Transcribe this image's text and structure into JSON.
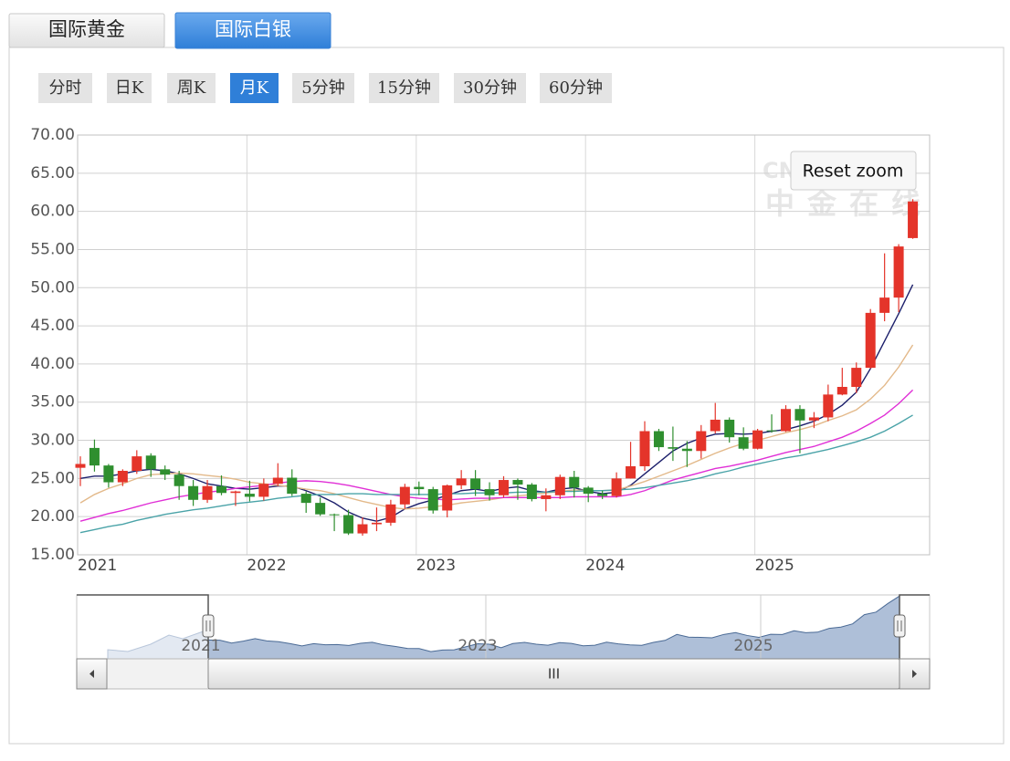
{
  "tabs": {
    "items": [
      "国际黄金",
      "国际白银"
    ],
    "active": 1
  },
  "periods": {
    "items": [
      "分时",
      "日K",
      "周K",
      "月K",
      "5分钟",
      "15分钟",
      "30分钟",
      "60分钟"
    ],
    "active": 3
  },
  "reset_zoom": "Reset zoom",
  "watermark": {
    "logo": "CN",
    "text": "中金在线"
  },
  "navigator": {
    "labels": [
      "2021",
      "2023",
      "2025"
    ],
    "grip": "III"
  },
  "chart_data": {
    "type": "candlestick",
    "categories": [
      "2021",
      null,
      null,
      null,
      null,
      null,
      null,
      null,
      null,
      null,
      null,
      null,
      "2022",
      null,
      null,
      null,
      null,
      null,
      null,
      null,
      null,
      null,
      null,
      null,
      "2023",
      null,
      null,
      null,
      null,
      null,
      null,
      null,
      null,
      null,
      null,
      null,
      "2024",
      null,
      null,
      null,
      null,
      null,
      null,
      null,
      null,
      null,
      null,
      null,
      "2025",
      null,
      null,
      null,
      null,
      null,
      null,
      null,
      null,
      null,
      null,
      null
    ],
    "open": [
      26.4,
      29.0,
      26.7,
      24.5,
      26.0,
      28.0,
      26.2,
      25.5,
      24.0,
      22.2,
      24.0,
      23.1,
      23.0,
      22.6,
      24.3,
      25.1,
      23.0,
      21.8,
      20.3,
      20.2,
      17.8,
      19.0,
      19.2,
      21.6,
      23.9,
      23.6,
      20.8,
      24.1,
      25.0,
      23.6,
      22.8,
      24.8,
      24.2,
      22.3,
      22.8,
      25.2,
      23.8,
      23.0,
      22.7,
      25.0,
      26.6,
      31.2,
      29.1,
      28.9,
      28.6,
      31.2,
      32.7,
      30.4,
      28.9,
      31.3,
      31.2,
      34.1,
      32.6,
      33.0,
      36.0,
      37.0,
      39.5,
      46.7,
      48.7,
      56.5
    ],
    "high": [
      27.9,
      30.1,
      26.9,
      26.2,
      28.7,
      28.3,
      26.7,
      26.0,
      24.8,
      24.8,
      25.4,
      23.4,
      24.7,
      25.0,
      27.0,
      26.2,
      23.3,
      22.5,
      20.4,
      20.9,
      19.9,
      21.2,
      22.2,
      24.3,
      24.6,
      23.9,
      24.2,
      26.1,
      26.1,
      24.5,
      25.3,
      25.0,
      24.4,
      23.7,
      25.5,
      26.0,
      24.0,
      23.4,
      25.8,
      29.8,
      32.5,
      31.5,
      31.8,
      29.9,
      32.0,
      34.9,
      33.0,
      31.7,
      31.5,
      33.4,
      34.6,
      34.6,
      33.7,
      37.3,
      39.5,
      40.2,
      47.2,
      54.5,
      55.7,
      61.6
    ],
    "low": [
      24.0,
      25.9,
      23.8,
      24.0,
      25.6,
      25.2,
      24.8,
      22.2,
      21.4,
      21.8,
      22.8,
      21.4,
      22.0,
      22.1,
      24.0,
      22.7,
      20.5,
      20.1,
      18.1,
      17.6,
      17.5,
      18.1,
      18.8,
      21.0,
      22.8,
      20.4,
      19.9,
      23.6,
      22.7,
      22.1,
      22.5,
      22.2,
      22.0,
      20.7,
      22.3,
      22.5,
      21.9,
      22.3,
      22.5,
      25.0,
      26.0,
      28.6,
      27.3,
      26.5,
      27.6,
      30.9,
      29.7,
      28.7,
      28.8,
      31.0,
      31.1,
      28.3,
      31.6,
      32.5,
      35.9,
      36.2,
      39.4,
      45.6,
      46.8,
      56.4
    ],
    "close": [
      26.9,
      26.7,
      24.5,
      26.0,
      27.9,
      26.2,
      25.5,
      24.0,
      22.2,
      24.0,
      23.1,
      23.3,
      22.6,
      24.3,
      25.1,
      23.0,
      21.8,
      20.3,
      20.2,
      17.8,
      19.0,
      19.2,
      21.6,
      23.9,
      23.6,
      20.8,
      24.1,
      25.0,
      23.6,
      22.8,
      24.8,
      24.2,
      22.3,
      22.8,
      25.2,
      23.8,
      23.0,
      22.7,
      25.0,
      26.6,
      31.2,
      29.1,
      28.9,
      28.6,
      31.2,
      32.7,
      30.4,
      28.9,
      31.3,
      31.2,
      34.1,
      32.6,
      33.0,
      36.0,
      37.0,
      39.5,
      46.7,
      48.7,
      55.4,
      61.3
    ],
    "up_color": "#e4342a",
    "down_color": "#2f8f2f",
    "series": [
      {
        "color": "#1c1f6b",
        "values": [
          25.0,
          25.3,
          25.3,
          25.6,
          26.0,
          26.2,
          26.0,
          25.6,
          25.0,
          24.3,
          24.0,
          23.7,
          23.6,
          23.8,
          24.0,
          24.0,
          23.4,
          22.7,
          21.8,
          20.6,
          19.8,
          19.4,
          19.9,
          21.0,
          21.7,
          22.2,
          22.8,
          23.4,
          23.6,
          23.3,
          23.7,
          23.9,
          23.4,
          23.2,
          23.6,
          23.8,
          23.3,
          23.0,
          23.2,
          24.1,
          25.6,
          27.1,
          28.6,
          29.6,
          30.3,
          30.8,
          30.9,
          30.8,
          30.9,
          31.2,
          31.4,
          31.9,
          32.5,
          33.4,
          34.6,
          36.3,
          39.4,
          43.0,
          46.6,
          50.4
        ]
      },
      {
        "color": "#e3b98a",
        "values": [
          21.8,
          22.9,
          23.7,
          24.3,
          25.0,
          25.5,
          25.6,
          25.7,
          25.6,
          25.4,
          25.2,
          24.9,
          24.5,
          24.3,
          24.1,
          23.9,
          23.6,
          23.4,
          23.0,
          22.5,
          22.0,
          21.6,
          21.2,
          21.0,
          21.1,
          21.3,
          21.5,
          21.8,
          22.0,
          22.2,
          22.5,
          22.7,
          22.9,
          23.1,
          23.3,
          23.5,
          23.4,
          23.4,
          23.5,
          24.0,
          24.6,
          25.3,
          26.0,
          26.7,
          27.5,
          28.3,
          29.0,
          29.6,
          30.0,
          30.5,
          31.0,
          31.4,
          31.9,
          32.6,
          33.2,
          34.0,
          35.4,
          37.2,
          39.6,
          42.5
        ]
      },
      {
        "color": "#e02fd6",
        "values": [
          19.4,
          19.9,
          20.4,
          20.8,
          21.3,
          21.8,
          22.2,
          22.6,
          22.9,
          23.2,
          23.4,
          23.7,
          23.9,
          24.1,
          24.4,
          24.6,
          24.7,
          24.6,
          24.4,
          24.1,
          23.7,
          23.3,
          22.9,
          22.6,
          22.4,
          22.3,
          22.2,
          22.3,
          22.4,
          22.4,
          22.5,
          22.5,
          22.5,
          22.5,
          22.5,
          22.6,
          22.6,
          22.6,
          22.6,
          22.9,
          23.4,
          24.1,
          24.8,
          25.3,
          25.8,
          26.3,
          26.6,
          27.0,
          27.4,
          27.9,
          28.4,
          28.8,
          29.2,
          29.8,
          30.4,
          31.2,
          32.2,
          33.3,
          34.8,
          36.6
        ]
      },
      {
        "color": "#4aa3a8",
        "values": [
          17.9,
          18.3,
          18.7,
          19.0,
          19.5,
          19.9,
          20.3,
          20.6,
          20.9,
          21.1,
          21.4,
          21.7,
          21.9,
          22.1,
          22.4,
          22.6,
          22.8,
          22.9,
          22.9,
          23.0,
          23.0,
          22.9,
          22.9,
          22.9,
          22.9,
          22.9,
          23.0,
          23.0,
          23.1,
          23.1,
          23.1,
          23.2,
          23.2,
          23.2,
          23.3,
          23.3,
          23.4,
          23.4,
          23.5,
          23.6,
          23.8,
          24.1,
          24.4,
          24.7,
          25.1,
          25.6,
          26.0,
          26.5,
          26.9,
          27.3,
          27.7,
          28.0,
          28.4,
          28.8,
          29.3,
          29.8,
          30.4,
          31.2,
          32.2,
          33.3
        ]
      }
    ],
    "ylim": [
      15,
      70
    ],
    "yticks": [
      {
        "value": 15,
        "label": "15.00"
      },
      {
        "value": 20,
        "label": "20.00"
      },
      {
        "value": 25,
        "label": "25.00"
      },
      {
        "value": 30,
        "label": "30.00"
      },
      {
        "value": 35,
        "label": "35.00"
      },
      {
        "value": 40,
        "label": "40.00"
      },
      {
        "value": 45,
        "label": "45.00"
      },
      {
        "value": 50,
        "label": "50.00"
      },
      {
        "value": 55,
        "label": "55.00"
      },
      {
        "value": 60,
        "label": "60.00"
      },
      {
        "value": 65,
        "label": "65.00"
      },
      {
        "value": 70,
        "label": "70.00"
      }
    ],
    "grid": true
  }
}
